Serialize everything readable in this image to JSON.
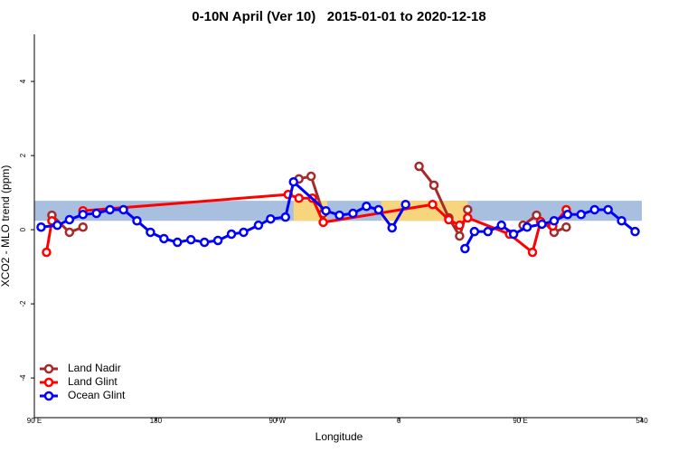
{
  "chart_data": {
    "type": "line",
    "title": "0-10N April (Ver 10)   2015-01-01 to 2020-12-18",
    "xlabel": "Longitude",
    "ylabel": "XCO2 - MLO trend (ppm)",
    "xlim": [
      90,
      540
    ],
    "ylim": [
      -5.07,
      5.27
    ],
    "xticks": [
      {
        "value": 90,
        "label": "90 E"
      },
      180,
      {
        "value": 270,
        "label": "90 W"
      },
      {
        "value": 360,
        "label": "0"
      },
      {
        "value": 450,
        "label": "90 E"
      },
      540
    ],
    "yticks": [
      -4,
      -2,
      0,
      2,
      4
    ],
    "band": [
      0.24,
      0.78
    ],
    "band_color": "#a9bfdf",
    "land_spans": [
      [
        282,
        307
      ],
      [
        347,
        411
      ]
    ],
    "land_color": "#f7d57e",
    "grid": false,
    "legend": "bottomleft",
    "series": [
      {
        "name": "Land Nadir",
        "color": "#a52a2a",
        "x": [
          103,
          116,
          126,
          278,
          286,
          295,
          304,
          354,
          375,
          386,
          397,
          405,
          411,
          442,
          452,
          462,
          475,
          484
        ],
        "values": [
          0.39,
          -0.07,
          0.07,
          null,
          1.37,
          1.44,
          0.44,
          null,
          1.71,
          1.2,
          0.32,
          -0.17,
          0.54,
          null,
          0.12,
          0.39,
          -0.07,
          0.07
        ]
      },
      {
        "name": "Land Glint",
        "color": "#ff0000",
        "x": [
          99,
          103,
          107,
          116,
          126,
          278,
          286,
          296,
          304,
          385,
          397,
          405,
          411,
          442,
          459,
          465,
          474,
          484
        ],
        "values": [
          -0.61,
          0.24,
          0.12,
          null,
          0.51,
          0.95,
          0.85,
          0.85,
          0.2,
          0.68,
          0.27,
          0.12,
          0.32,
          -0.12,
          -0.61,
          0.22,
          0.1,
          0.54
        ]
      },
      {
        "name": "Ocean Glint",
        "color": "#0000ff",
        "x": [
          95,
          107,
          116,
          126,
          136,
          146,
          156,
          166,
          176,
          186,
          196,
          206,
          216,
          226,
          236,
          245,
          256,
          265,
          276,
          282,
          306,
          316,
          326,
          336,
          345,
          355,
          365,
          387,
          409,
          416,
          426,
          436,
          445,
          455,
          466,
          475,
          485,
          495,
          505,
          515,
          525,
          535
        ],
        "values": [
          0.07,
          0.12,
          0.27,
          0.41,
          0.44,
          0.54,
          0.54,
          0.24,
          -0.07,
          -0.24,
          -0.34,
          -0.27,
          -0.34,
          -0.29,
          -0.12,
          -0.07,
          0.12,
          0.29,
          0.34,
          1.29,
          0.51,
          0.39,
          0.44,
          0.63,
          0.54,
          0.05,
          0.68,
          null,
          -0.51,
          -0.05,
          -0.05,
          0.12,
          -0.12,
          0.07,
          0.15,
          0.24,
          0.41,
          0.41,
          0.54,
          0.54,
          0.24,
          -0.05
        ]
      }
    ]
  }
}
